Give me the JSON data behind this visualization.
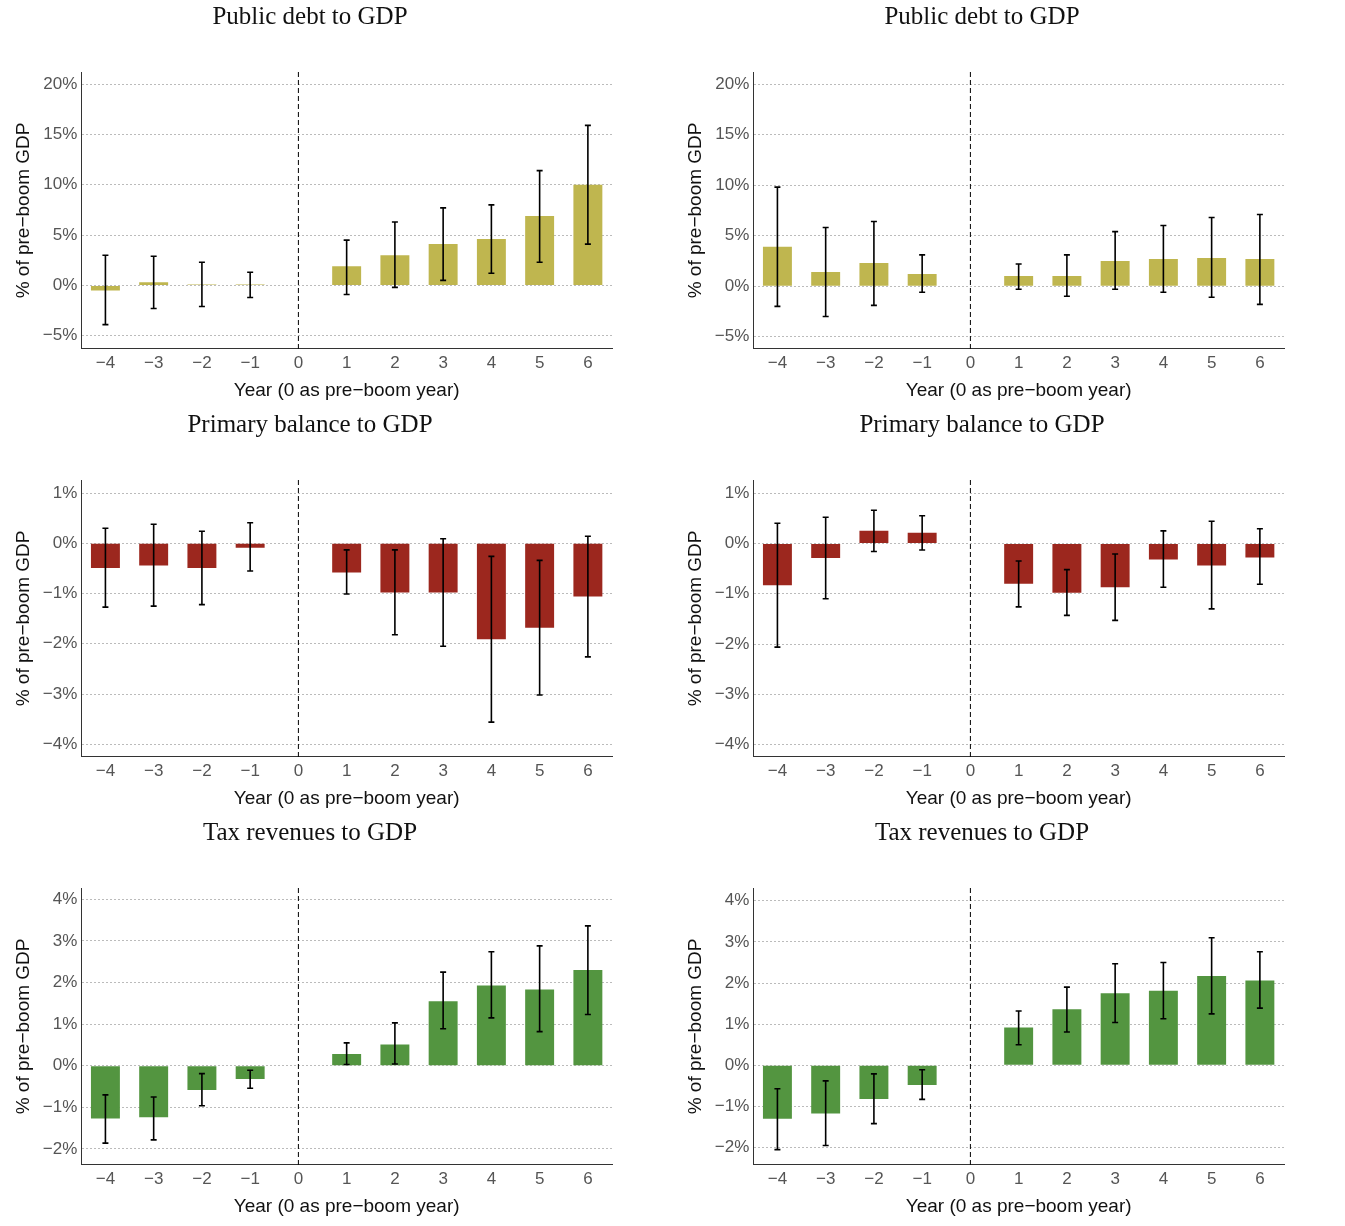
{
  "chart_data": [
    {
      "type": "bar",
      "title": "Public debt to GDP",
      "xlabel": "Year (0 as pre−boom year)",
      "ylabel": "% of pre−boom GDP",
      "categories": [
        "−4",
        "−3",
        "−2",
        "−1",
        "0",
        "1",
        "2",
        "3",
        "4",
        "5",
        "6"
      ],
      "color": "#bfb64f",
      "values": [
        -0.5,
        0.3,
        0.1,
        0.1,
        0,
        1.9,
        3.0,
        4.1,
        4.6,
        6.9,
        10.0
      ],
      "errors": [
        [
          -3.9,
          3.0
        ],
        [
          -2.3,
          2.9
        ],
        [
          -2.1,
          2.3
        ],
        [
          -1.2,
          1.3
        ],
        null,
        [
          -0.9,
          4.5
        ],
        [
          -0.2,
          6.3
        ],
        [
          0.5,
          7.7
        ],
        [
          1.2,
          8.0
        ],
        [
          2.3,
          11.4
        ],
        [
          4.1,
          15.9
        ]
      ],
      "ylim": [
        -6.3,
        21.2
      ],
      "yticks": [
        {
          "value": -5,
          "label": "−5%"
        },
        {
          "value": 0,
          "label": "0%"
        },
        {
          "value": 5,
          "label": "5%"
        },
        {
          "value": 10,
          "label": "10%"
        },
        {
          "value": 15,
          "label": "15%"
        },
        {
          "value": 20,
          "label": "20%"
        }
      ],
      "grid": "y",
      "ref_lines": [
        {
          "axis": "x",
          "value": "0",
          "line_style": "dashed"
        }
      ]
    },
    {
      "type": "bar",
      "title": "Public debt to GDP",
      "xlabel": "Year (0 as pre−boom year)",
      "ylabel": "% of pre−boom GDP",
      "categories": [
        "−4",
        "−3",
        "−2",
        "−1",
        "0",
        "1",
        "2",
        "3",
        "4",
        "5",
        "6"
      ],
      "color": "#bfb64f",
      "values": [
        3.9,
        1.4,
        2.3,
        1.2,
        0,
        1.0,
        1.0,
        2.5,
        2.7,
        2.8,
        2.7
      ],
      "errors": [
        [
          -2.0,
          9.8
        ],
        [
          -3.0,
          5.8
        ],
        [
          -1.9,
          6.4
        ],
        [
          -0.6,
          3.1
        ],
        null,
        [
          -0.3,
          2.2
        ],
        [
          -1.0,
          3.1
        ],
        [
          -0.3,
          5.4
        ],
        [
          -0.6,
          6.0
        ],
        [
          -1.1,
          6.8
        ],
        [
          -1.8,
          7.1
        ]
      ],
      "ylim": [
        -6.2,
        21.2
      ],
      "yticks": [
        {
          "value": -5,
          "label": "−5%"
        },
        {
          "value": 0,
          "label": "0%"
        },
        {
          "value": 5,
          "label": "5%"
        },
        {
          "value": 10,
          "label": "10%"
        },
        {
          "value": 15,
          "label": "15%"
        },
        {
          "value": 20,
          "label": "20%"
        }
      ],
      "grid": "y",
      "ref_lines": [
        {
          "axis": "x",
          "value": "0",
          "line_style": "dashed"
        }
      ]
    },
    {
      "type": "bar",
      "title": "Primary balance to GDP",
      "xlabel": "Year (0 as pre−boom year)",
      "ylabel": "% of pre−boom GDP",
      "categories": [
        "−4",
        "−3",
        "−2",
        "−1",
        "0",
        "1",
        "2",
        "3",
        "4",
        "5",
        "6"
      ],
      "color": "#9c271e",
      "values": [
        -0.49,
        -0.44,
        -0.49,
        -0.09,
        0,
        -0.58,
        -0.98,
        -0.98,
        -1.91,
        -1.68,
        -1.06
      ],
      "errors": [
        [
          -1.27,
          0.3
        ],
        [
          -1.25,
          0.38
        ],
        [
          -1.22,
          0.24
        ],
        [
          -0.55,
          0.41
        ],
        null,
        [
          -1.01,
          -0.13
        ],
        [
          -1.82,
          -0.13
        ],
        [
          -2.05,
          0.09
        ],
        [
          -3.56,
          -0.26
        ],
        [
          -3.02,
          -0.34
        ],
        [
          -2.26,
          0.14
        ]
      ],
      "ylim": [
        -4.25,
        1.26
      ],
      "yticks": [
        {
          "value": -4,
          "label": "−4%"
        },
        {
          "value": -3,
          "label": "−3%"
        },
        {
          "value": -2,
          "label": "−2%"
        },
        {
          "value": -1,
          "label": "−1%"
        },
        {
          "value": 0,
          "label": "0%"
        },
        {
          "value": 1,
          "label": "1%"
        }
      ],
      "grid": "y",
      "ref_lines": [
        {
          "axis": "x",
          "value": "0",
          "line_style": "dashed"
        }
      ]
    },
    {
      "type": "bar",
      "title": "Primary balance to GDP",
      "xlabel": "Year (0 as pre−boom year)",
      "ylabel": "% of pre−boom GDP",
      "categories": [
        "−4",
        "−3",
        "−2",
        "−1",
        "0",
        "1",
        "2",
        "3",
        "4",
        "5",
        "6"
      ],
      "color": "#9c271e",
      "values": [
        -0.83,
        -0.29,
        0.25,
        0.21,
        0,
        -0.8,
        -0.98,
        -0.87,
        -0.32,
        -0.44,
        -0.28
      ],
      "errors": [
        [
          -2.06,
          0.4
        ],
        [
          -1.1,
          0.52
        ],
        [
          -0.16,
          0.66
        ],
        [
          -0.13,
          0.55
        ],
        null,
        [
          -1.26,
          -0.35
        ],
        [
          -1.43,
          -0.52
        ],
        [
          -1.53,
          -0.21
        ],
        [
          -0.87,
          0.25
        ],
        [
          -1.3,
          0.44
        ],
        [
          -0.81,
          0.29
        ]
      ],
      "ylim": [
        -4.24,
        1.26
      ],
      "yticks": [
        {
          "value": -4,
          "label": "−4%"
        },
        {
          "value": -3,
          "label": "−3%"
        },
        {
          "value": -2,
          "label": "−2%"
        },
        {
          "value": -1,
          "label": "−1%"
        },
        {
          "value": 0,
          "label": "0%"
        },
        {
          "value": 1,
          "label": "1%"
        }
      ],
      "grid": "y",
      "ref_lines": [
        {
          "axis": "x",
          "value": "0",
          "line_style": "dashed"
        }
      ]
    },
    {
      "type": "bar",
      "title": "Tax revenues to GDP",
      "xlabel": "Year (0 as pre−boom year)",
      "ylabel": "% of pre−boom GDP",
      "categories": [
        "−4",
        "−3",
        "−2",
        "−1",
        "0",
        "1",
        "2",
        "3",
        "4",
        "5",
        "6"
      ],
      "color": "#539540",
      "values": [
        -1.27,
        -1.24,
        -0.58,
        -0.32,
        0,
        0.28,
        0.51,
        1.55,
        1.93,
        1.83,
        2.3
      ],
      "errors": [
        [
          -1.86,
          -0.7
        ],
        [
          -1.78,
          -0.75
        ],
        [
          -0.96,
          -0.19
        ],
        [
          -0.54,
          -0.11
        ],
        null,
        [
          0.03,
          0.55
        ],
        [
          0.04,
          1.03
        ],
        [
          0.89,
          2.25
        ],
        [
          1.15,
          2.74
        ],
        [
          0.82,
          2.88
        ],
        [
          1.23,
          3.36
        ]
      ],
      "ylim": [
        -2.38,
        4.27
      ],
      "yticks": [
        {
          "value": -2,
          "label": "−2%"
        },
        {
          "value": -1,
          "label": "−1%"
        },
        {
          "value": 0,
          "label": "0%"
        },
        {
          "value": 1,
          "label": "1%"
        },
        {
          "value": 2,
          "label": "2%"
        },
        {
          "value": 3,
          "label": "3%"
        },
        {
          "value": 4,
          "label": "4%"
        }
      ],
      "grid": "y",
      "ref_lines": [
        {
          "axis": "x",
          "value": "0",
          "line_style": "dashed"
        }
      ]
    },
    {
      "type": "bar",
      "title": "Tax revenues to GDP",
      "xlabel": "Year (0 as pre−boom year)",
      "ylabel": "% of pre−boom GDP",
      "categories": [
        "−4",
        "−3",
        "−2",
        "−1",
        "0",
        "1",
        "2",
        "3",
        "4",
        "5",
        "6"
      ],
      "color": "#539540",
      "values": [
        -1.3,
        -1.17,
        -0.82,
        -0.48,
        0,
        0.92,
        1.36,
        1.75,
        1.81,
        2.17,
        2.06
      ],
      "errors": [
        [
          -2.05,
          -0.57
        ],
        [
          -1.95,
          -0.38
        ],
        [
          -1.42,
          -0.21
        ],
        [
          -0.83,
          -0.11
        ],
        null,
        [
          0.5,
          1.32
        ],
        [
          0.81,
          1.9
        ],
        [
          1.04,
          2.47
        ],
        [
          1.13,
          2.5
        ],
        [
          1.25,
          3.1
        ],
        [
          1.39,
          2.76
        ]
      ],
      "ylim": [
        -2.42,
        4.31
      ],
      "yticks": [
        {
          "value": -2,
          "label": "−2%"
        },
        {
          "value": -1,
          "label": "−1%"
        },
        {
          "value": 0,
          "label": "0%"
        },
        {
          "value": 1,
          "label": "1%"
        },
        {
          "value": 2,
          "label": "2%"
        },
        {
          "value": 3,
          "label": "3%"
        },
        {
          "value": 4,
          "label": "4%"
        }
      ],
      "grid": "y",
      "ref_lines": [
        {
          "axis": "x",
          "value": "0",
          "line_style": "dashed"
        }
      ]
    }
  ]
}
